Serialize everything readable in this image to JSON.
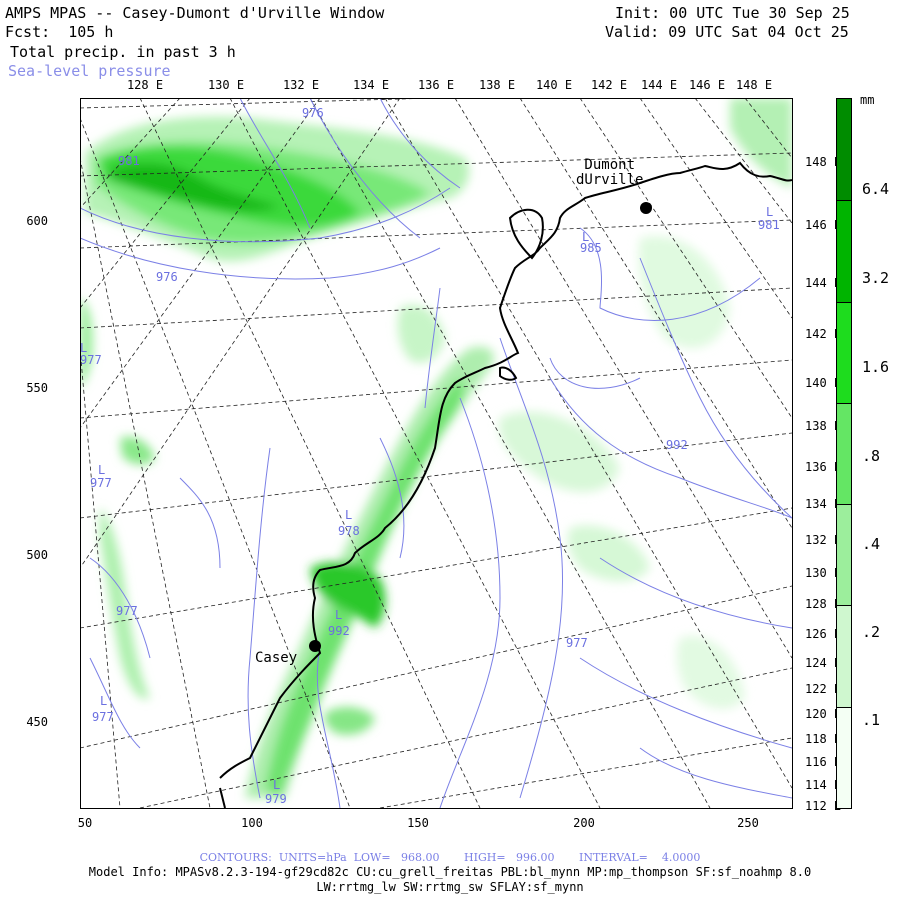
{
  "header": {
    "title": "AMPS MPAS -- Casey-Dumont d'Urville Window",
    "forecast": "Fcst:  105 h",
    "field": "Total precip. in past 3 h",
    "overlay": "Sea-level pressure",
    "init": "Init: 00 UTC Tue 30 Sep 25",
    "valid": "Valid: 09 UTC Sat 04 Oct 25"
  },
  "x_axis_ticks": [
    "50",
    "100",
    "150",
    "200",
    "250"
  ],
  "y_axis_ticks": [
    "600",
    "550",
    "500",
    "450"
  ],
  "longitudes_top": [
    "128 E",
    "130 E",
    "132 E",
    "134 E",
    "136 E",
    "138 E",
    "140 E",
    "142 E",
    "144 E",
    "146 E",
    "148 E"
  ],
  "longitudes_right": [
    "148 E",
    "146 E",
    "144 E",
    "142 E",
    "140 E",
    "138 E",
    "136 E",
    "134 E",
    "132 E",
    "130 E",
    "128 E",
    "126 E",
    "124 E",
    "122 E",
    "120 E",
    "118 E",
    "116 E",
    "114 E",
    "112 E"
  ],
  "colorbar": {
    "unit": "mm",
    "labels": [
      "6.4",
      "3.2",
      "1.6",
      ".8",
      ".4",
      ".2",
      ".1"
    ],
    "colors": [
      "#008c00",
      "#00b400",
      "#1edc1e",
      "#64e664",
      "#9cee9c",
      "#cff7cf",
      "#f4fff4"
    ]
  },
  "places": {
    "dumont": "Dumont\ndUrville",
    "casey": "Casey"
  },
  "pressure_labels": [
    "976",
    "981",
    "976",
    "985",
    "981",
    "977",
    "977",
    "978",
    "992",
    "977",
    "992",
    "977",
    "977",
    "979"
  ],
  "pressure_low_marker": "L",
  "footer": {
    "contours": "CONTOURS:  UNITS=hPa  LOW=   968.00       HIGH=   996.00       INTERVAL=    4.0000",
    "model": "Model Info: MPASv8.2.3-194-gf29cd82c CU:cu_grell_freitas PBL:bl_mynn MP:mp_thompson SF:sf_noahmp 8.0",
    "physics": "LW:rrtmg_lw SW:rrtmg_sw SFLAY:sf_mynn"
  }
}
